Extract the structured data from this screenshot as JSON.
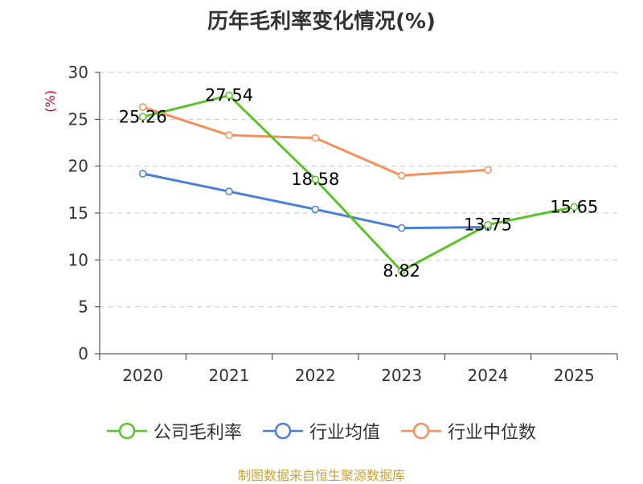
{
  "chart_data": {
    "type": "line",
    "title": "历年毛利率变化情况(%)",
    "ylabel": "(%)",
    "xlabel": "",
    "categories": [
      "2020",
      "2021",
      "2022",
      "2023",
      "2024",
      "2025"
    ],
    "ylim": [
      0,
      30
    ],
    "yticks": [
      0,
      5,
      10,
      15,
      20,
      25,
      30
    ],
    "grid": true,
    "legend_position": "bottom",
    "series": [
      {
        "name": "公司毛利率",
        "color": "#5cc22a",
        "values": [
          25.26,
          27.54,
          18.58,
          8.82,
          13.75,
          15.65
        ],
        "show_labels": true
      },
      {
        "name": "行业均值",
        "color": "#4a7fd6",
        "values": [
          19.2,
          17.3,
          15.4,
          13.4,
          13.5,
          null
        ],
        "show_labels": false
      },
      {
        "name": "行业中位数",
        "color": "#f4915a",
        "values": [
          26.3,
          23.3,
          23.0,
          19.0,
          19.6,
          null
        ],
        "show_labels": false
      }
    ]
  },
  "footer": {
    "source": "制图数据来自恒生聚源数据库"
  }
}
